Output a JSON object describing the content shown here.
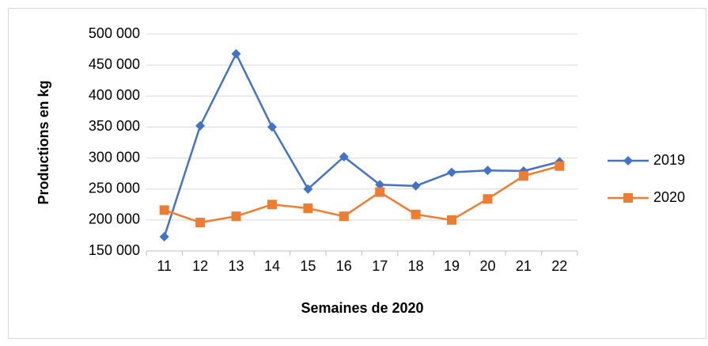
{
  "chart_data": {
    "type": "line",
    "x_label": "Semaines de 2020",
    "y_label": "Productions en kg",
    "categories": [
      "11",
      "12",
      "13",
      "14",
      "15",
      "16",
      "17",
      "18",
      "19",
      "20",
      "21",
      "22"
    ],
    "series": [
      {
        "name": "2019",
        "color": "#4472c4",
        "marker": "diamond",
        "values": [
          173000,
          352000,
          468000,
          350000,
          250000,
          302000,
          257000,
          255000,
          277000,
          280000,
          279000,
          294000
        ]
      },
      {
        "name": "2020",
        "color": "#ed7d31",
        "marker": "square",
        "values": [
          216000,
          196000,
          206000,
          225000,
          219000,
          206000,
          245000,
          209000,
          200000,
          234000,
          271000,
          287000
        ]
      }
    ],
    "ylim": [
      150000,
      500000
    ],
    "yticks": [
      {
        "value": 150000,
        "label": "150 000"
      },
      {
        "value": 200000,
        "label": "200 000"
      },
      {
        "value": 250000,
        "label": "250 000"
      },
      {
        "value": 300000,
        "label": "300 000"
      },
      {
        "value": 350000,
        "label": "350 000"
      },
      {
        "value": 400000,
        "label": "400 000"
      },
      {
        "value": 450000,
        "label": "450 000"
      },
      {
        "value": 500000,
        "label": "500 000"
      }
    ],
    "grid": true,
    "legend": "right"
  }
}
